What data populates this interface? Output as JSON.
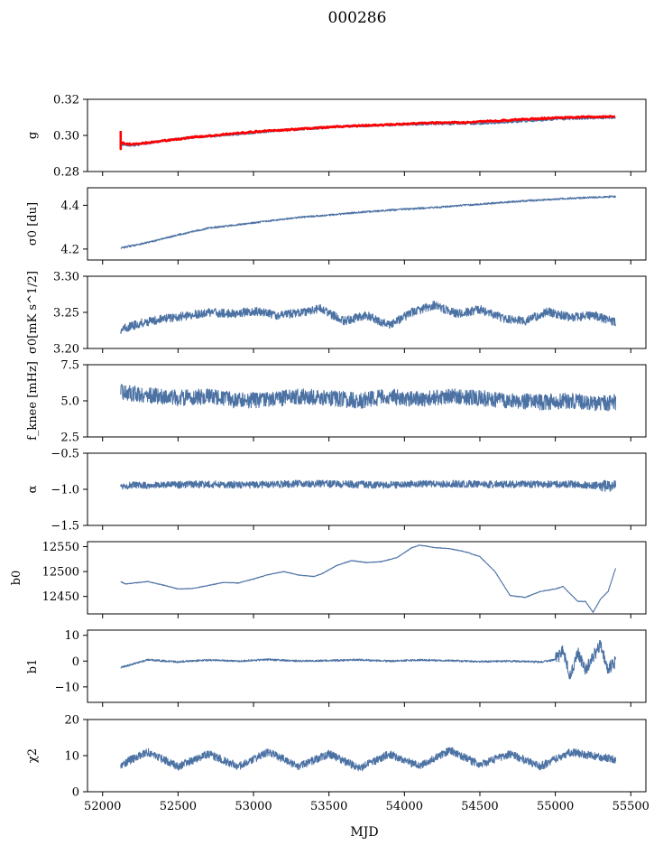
{
  "title": "000286",
  "xlabel": "MJD",
  "x_range": [
    51900,
    55600
  ],
  "x_ticks": [
    52000,
    52500,
    53000,
    53500,
    54000,
    54500,
    55000,
    55500
  ],
  "colors": {
    "series": "#4c72a4",
    "fit": "#ff0000",
    "axis": "#000000"
  },
  "chart_data": [
    {
      "type": "line",
      "id": "g",
      "ylabel": "g",
      "ylim": [
        0.28,
        0.32
      ],
      "yticks": [
        0.28,
        0.3,
        0.32
      ],
      "ytick_labels": [
        "0.28",
        "0.30",
        "0.32"
      ],
      "series": [
        {
          "name": "g",
          "x": [
            52120,
            52200,
            52400,
            52600,
            52800,
            53000,
            53200,
            53400,
            53600,
            53800,
            54000,
            54200,
            54400,
            54600,
            54800,
            55000,
            55200,
            55400
          ],
          "y": [
            0.295,
            0.2945,
            0.297,
            0.299,
            0.3,
            0.3015,
            0.303,
            0.304,
            0.305,
            0.3055,
            0.306,
            0.3065,
            0.3065,
            0.307,
            0.308,
            0.309,
            0.3095,
            0.31
          ]
        },
        {
          "name": "g fit",
          "x": [
            52120,
            52200,
            52400,
            52600,
            52800,
            53000,
            53200,
            53400,
            53600,
            53800,
            54000,
            54200,
            54400,
            54600,
            54800,
            55000,
            55200,
            55400
          ],
          "y": [
            0.296,
            0.295,
            0.297,
            0.299,
            0.3005,
            0.302,
            0.303,
            0.304,
            0.305,
            0.3057,
            0.3063,
            0.307,
            0.3072,
            0.308,
            0.309,
            0.3097,
            0.3102,
            0.3105
          ]
        }
      ]
    },
    {
      "type": "line",
      "id": "sigma0",
      "ylabel": "σ0 [du]",
      "ylim": [
        4.15,
        4.48
      ],
      "yticks": [
        4.2,
        4.4
      ],
      "ytick_labels": [
        "4.2",
        "4.4"
      ],
      "series": [
        {
          "name": "sigma0",
          "x": [
            52120,
            52300,
            52500,
            52700,
            53000,
            53300,
            53500,
            53700,
            54000,
            54200,
            54400,
            54600,
            54800,
            55000,
            55200,
            55400
          ],
          "y": [
            4.205,
            4.23,
            4.265,
            4.295,
            4.32,
            4.345,
            4.355,
            4.368,
            4.382,
            4.39,
            4.4,
            4.41,
            4.42,
            4.428,
            4.435,
            4.44
          ]
        }
      ]
    },
    {
      "type": "line",
      "id": "sigma0b",
      "ylabel": "σ0[mK s^1/2]",
      "ylim": [
        3.2,
        3.3
      ],
      "yticks": [
        3.2,
        3.25,
        3.3
      ],
      "ytick_labels": [
        "3.20",
        "3.25",
        "3.30"
      ],
      "series": [
        {
          "name": "sigma0 noise",
          "x": [
            52120,
            52250,
            52400,
            52550,
            52700,
            52850,
            53000,
            53150,
            53300,
            53450,
            53600,
            53750,
            53900,
            54050,
            54200,
            54350,
            54500,
            54650,
            54800,
            54950,
            55100,
            55250,
            55400
          ],
          "y": [
            3.226,
            3.235,
            3.241,
            3.245,
            3.25,
            3.248,
            3.252,
            3.246,
            3.249,
            3.255,
            3.238,
            3.246,
            3.232,
            3.25,
            3.26,
            3.248,
            3.254,
            3.242,
            3.238,
            3.251,
            3.243,
            3.246,
            3.236
          ]
        }
      ]
    },
    {
      "type": "line",
      "id": "fknee",
      "ylabel": "f_knee [mHz]",
      "ylim": [
        2.5,
        7.5
      ],
      "yticks": [
        2.5,
        5.0,
        7.5
      ],
      "ytick_labels": [
        "2.5",
        "5.0",
        "7.5"
      ],
      "series": [
        {
          "name": "fknee",
          "x": [
            52120,
            52300,
            52500,
            52700,
            52900,
            53100,
            53300,
            53500,
            53700,
            53900,
            54100,
            54300,
            54500,
            54700,
            54900,
            55100,
            55300,
            55400
          ],
          "y": [
            5.6,
            5.4,
            5.2,
            5.3,
            5.0,
            5.1,
            5.3,
            5.2,
            5.0,
            5.3,
            5.1,
            5.3,
            5.2,
            5.0,
            4.9,
            5.0,
            4.8,
            4.9
          ]
        }
      ]
    },
    {
      "type": "line",
      "id": "alpha",
      "ylabel": "α",
      "ylim": [
        -1.5,
        -0.5
      ],
      "yticks": [
        -1.5,
        -1.0,
        -0.5
      ],
      "ytick_labels": [
        "−1.5",
        "−1.0",
        "−0.5"
      ],
      "series": [
        {
          "name": "alpha",
          "x": [
            52120,
            52400,
            52700,
            53000,
            53300,
            53600,
            53900,
            54200,
            54500,
            54800,
            55100,
            55400
          ],
          "y": [
            -0.95,
            -0.94,
            -0.93,
            -0.94,
            -0.92,
            -0.93,
            -0.94,
            -0.92,
            -0.93,
            -0.93,
            -0.93,
            -0.96
          ]
        }
      ]
    },
    {
      "type": "line",
      "id": "b0",
      "ylabel": "b0",
      "ylim": [
        12415,
        12560
      ],
      "yticks": [
        12450,
        12500,
        12550
      ],
      "ytick_labels": [
        "12450",
        "12500",
        "12550"
      ],
      "series": [
        {
          "name": "b0",
          "x": [
            52120,
            52150,
            52300,
            52400,
            52500,
            52600,
            52700,
            52800,
            52900,
            53000,
            53100,
            53200,
            53300,
            53400,
            53450,
            53550,
            53650,
            53750,
            53850,
            53950,
            54050,
            54100,
            54200,
            54300,
            54400,
            54500,
            54600,
            54700,
            54800,
            54900,
            55000,
            55050,
            55100,
            55150,
            55200,
            55250,
            55300,
            55350,
            55400
          ],
          "y": [
            12480,
            12475,
            12480,
            12473,
            12465,
            12466,
            12472,
            12478,
            12477,
            12485,
            12494,
            12500,
            12493,
            12490,
            12495,
            12512,
            12522,
            12518,
            12520,
            12528,
            12548,
            12553,
            12548,
            12546,
            12540,
            12530,
            12500,
            12452,
            12448,
            12460,
            12465,
            12470,
            12455,
            12440,
            12440,
            12418,
            12445,
            12460,
            12507
          ]
        }
      ]
    },
    {
      "type": "line",
      "id": "b1",
      "ylabel": "b1",
      "ylim": [
        -16,
        12
      ],
      "yticks": [
        -10,
        0,
        10
      ],
      "ytick_labels": [
        "−10",
        "0",
        "10"
      ],
      "series": [
        {
          "name": "b1",
          "x": [
            52120,
            52300,
            52500,
            52700,
            52900,
            53100,
            53300,
            53500,
            53700,
            53900,
            54100,
            54300,
            54500,
            54700,
            54900,
            55000,
            55050,
            55100,
            55150,
            55200,
            55250,
            55300,
            55350,
            55400
          ],
          "y": [
            -2.5,
            0.5,
            -0.3,
            0.4,
            0.0,
            0.6,
            0.0,
            0.2,
            0.5,
            0.0,
            0.4,
            0.2,
            -0.2,
            0.0,
            -0.3,
            0.5,
            4.0,
            -6.0,
            3.0,
            -4.0,
            2.0,
            6.0,
            -3.0,
            0.0
          ]
        }
      ]
    },
    {
      "type": "line",
      "id": "chi2",
      "ylabel": "χ2",
      "ylim": [
        0,
        20
      ],
      "yticks": [
        0,
        10,
        20
      ],
      "ytick_labels": [
        "0",
        "10",
        "20"
      ],
      "series": [
        {
          "name": "chi2",
          "x": [
            52120,
            52300,
            52500,
            52700,
            52900,
            53100,
            53300,
            53500,
            53700,
            53900,
            54100,
            54300,
            54500,
            54700,
            54900,
            55100,
            55300,
            55400
          ],
          "y": [
            7.5,
            11.0,
            7.0,
            10.5,
            7.0,
            11.0,
            7.0,
            10.5,
            6.5,
            10.5,
            7.0,
            11.5,
            7.5,
            10.5,
            7.0,
            11.0,
            9.5,
            9.0
          ]
        }
      ]
    }
  ]
}
